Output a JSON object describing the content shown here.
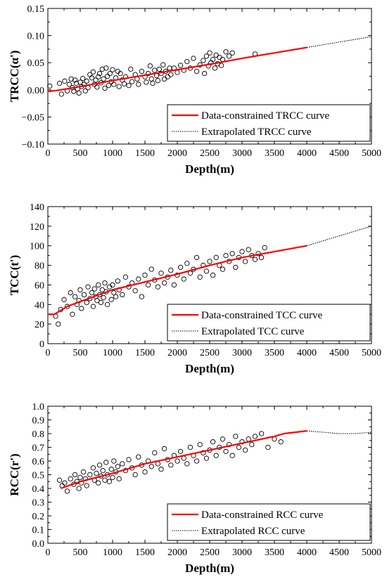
{
  "chart_data": [
    {
      "type": "scatter",
      "xlabel": "Depth(m)",
      "ylabel": "TRCC(α')",
      "xlim": [
        0,
        5000
      ],
      "ylim": [
        -0.1,
        0.15
      ],
      "x_ticks": [
        "0",
        "500",
        "1000",
        "1500",
        "2000",
        "2500",
        "3000",
        "3500",
        "4000",
        "4500",
        "5000"
      ],
      "y_ticks": [
        "−0.10",
        "−0.05",
        "0.00",
        "0.05",
        "0.10",
        "0.15"
      ],
      "grid": false,
      "legend_position": "bottom-right",
      "series": [
        {
          "name": "Data-constrained TRCC curve",
          "color": "#ff0000",
          "style": "solid",
          "x": [
            0,
            150,
            500,
            1000,
            1500,
            2000,
            2500,
            3000,
            3500,
            4000
          ],
          "y": [
            -0.003,
            -0.001,
            0.006,
            0.017,
            0.027,
            0.037,
            0.047,
            0.058,
            0.068,
            0.078
          ]
        },
        {
          "name": "Extrapolated TRCC curve",
          "color": "#000000",
          "style": "dotted",
          "x": [
            4000,
            4500,
            5000
          ],
          "y": [
            0.078,
            0.088,
            0.098
          ]
        },
        {
          "marker": "open-circle",
          "x": [
            30,
            180,
            210,
            260,
            300,
            330,
            360,
            380,
            400,
            420,
            440,
            460,
            480,
            500,
            520,
            540,
            560,
            580,
            600,
            620,
            650,
            680,
            700,
            720,
            740,
            760,
            780,
            800,
            820,
            840,
            860,
            880,
            900,
            920,
            940,
            960,
            980,
            1000,
            1020,
            1050,
            1080,
            1100,
            1120,
            1150,
            1180,
            1200,
            1250,
            1280,
            1300,
            1350,
            1380,
            1400,
            1450,
            1500,
            1520,
            1550,
            1580,
            1600,
            1620,
            1650,
            1680,
            1700,
            1720,
            1750,
            1780,
            1800,
            1820,
            1850,
            1880,
            1900,
            1950,
            2000,
            2050,
            2100,
            2150,
            2200,
            2250,
            2300,
            2350,
            2400,
            2420,
            2450,
            2480,
            2500,
            2520,
            2550,
            2580,
            2600,
            2620,
            2650,
            2680,
            2700,
            2750,
            2800,
            2850,
            3200
          ],
          "y": [
            0.007,
            0.012,
            -0.008,
            0.016,
            -0.002,
            0.01,
            0.02,
            0.004,
            -0.003,
            0.018,
            0.012,
            0.002,
            -0.006,
            0.014,
            0.006,
            0.021,
            0.01,
            -0.002,
            0.016,
            0.004,
            0.028,
            0.022,
            0.033,
            0.01,
            0.018,
            0.005,
            0.024,
            0.03,
            0.013,
            0.038,
            0.02,
            0.003,
            0.04,
            0.025,
            0.008,
            0.03,
            0.015,
            0.037,
            0.01,
            0.022,
            0.034,
            0.006,
            0.03,
            0.018,
            0.011,
            0.024,
            0.008,
            0.038,
            0.015,
            0.028,
            0.02,
            0.01,
            0.034,
            0.024,
            0.014,
            0.03,
            0.044,
            0.02,
            0.012,
            0.036,
            0.026,
            0.017,
            0.038,
            0.03,
            0.046,
            0.02,
            0.034,
            0.024,
            0.04,
            0.028,
            0.04,
            0.032,
            0.045,
            0.036,
            0.052,
            0.04,
            0.058,
            0.034,
            0.046,
            0.054,
            0.03,
            0.062,
            0.044,
            0.068,
            0.05,
            0.056,
            0.04,
            0.064,
            0.048,
            0.06,
            0.045,
            0.056,
            0.07,
            0.062,
            0.068,
            0.066
          ]
        }
      ]
    },
    {
      "type": "scatter",
      "xlabel": "Depth(m)",
      "ylabel": "TCC(t')",
      "xlim": [
        0,
        5000
      ],
      "ylim": [
        0,
        140
      ],
      "x_ticks": [
        "0",
        "500",
        "1000",
        "1500",
        "2000",
        "2500",
        "3000",
        "3500",
        "4000",
        "4500",
        "5000"
      ],
      "y_ticks": [
        "0",
        "20",
        "40",
        "60",
        "80",
        "100",
        "120",
        "140"
      ],
      "grid": false,
      "legend_position": "bottom-right",
      "series": [
        {
          "name": "Data-constrained TCC curve",
          "color": "#ff0000",
          "style": "solid",
          "x": [
            0,
            100,
            200,
            300,
            500,
            750,
            1000,
            1500,
            2000,
            2500,
            3000,
            3500,
            4000
          ],
          "y": [
            30,
            30,
            34,
            38,
            43,
            49,
            55,
            63,
            71,
            80,
            88,
            94,
            100
          ]
        },
        {
          "name": "Extrapolated TCC curve",
          "color": "#000000",
          "style": "dotted",
          "x": [
            4000,
            4500,
            5000
          ],
          "y": [
            100,
            110,
            120
          ]
        },
        {
          "marker": "open-circle",
          "x": [
            120,
            160,
            200,
            250,
            300,
            350,
            380,
            420,
            450,
            480,
            500,
            520,
            560,
            600,
            620,
            650,
            680,
            700,
            720,
            740,
            760,
            780,
            800,
            820,
            840,
            860,
            880,
            900,
            920,
            950,
            980,
            1000,
            1020,
            1050,
            1080,
            1100,
            1150,
            1200,
            1250,
            1300,
            1350,
            1400,
            1450,
            1500,
            1550,
            1600,
            1650,
            1700,
            1750,
            1800,
            1850,
            1900,
            1950,
            2000,
            2050,
            2100,
            2150,
            2200,
            2250,
            2300,
            2350,
            2400,
            2450,
            2500,
            2550,
            2600,
            2650,
            2700,
            2750,
            2800,
            2850,
            2900,
            2950,
            3000,
            3050,
            3100,
            3150,
            3200,
            3250,
            3300,
            3350
          ],
          "y": [
            28,
            20,
            35,
            45,
            38,
            52,
            30,
            48,
            40,
            44,
            55,
            36,
            50,
            42,
            58,
            46,
            52,
            38,
            56,
            48,
            44,
            60,
            50,
            42,
            55,
            47,
            62,
            53,
            40,
            58,
            45,
            60,
            52,
            48,
            64,
            55,
            50,
            68,
            58,
            62,
            54,
            66,
            48,
            70,
            60,
            76,
            65,
            58,
            72,
            62,
            68,
            75,
            60,
            70,
            78,
            66,
            82,
            72,
            76,
            88,
            68,
            80,
            74,
            84,
            70,
            88,
            80,
            76,
            90,
            84,
            92,
            78,
            88,
            94,
            84,
            96,
            90,
            86,
            92,
            88,
            98
          ]
        }
      ]
    },
    {
      "type": "scatter",
      "xlabel": "Depth(m)",
      "ylabel": "RCC(r')",
      "xlim": [
        0,
        5000
      ],
      "ylim": [
        0.0,
        1.0
      ],
      "x_ticks": [
        "0",
        "500",
        "1000",
        "1500",
        "2000",
        "2500",
        "3000",
        "3500",
        "4000",
        "4500",
        "5000"
      ],
      "y_ticks": [
        "0.0",
        "0.1",
        "0.2",
        "0.3",
        "0.4",
        "0.5",
        "0.6",
        "0.7",
        "0.8",
        "0.9",
        "1.0"
      ],
      "grid": false,
      "legend_position": "bottom-right",
      "series": [
        {
          "name": "Data-constrained RCC curve",
          "color": "#ff0000",
          "style": "solid",
          "x": [
            200,
            500,
            1000,
            1500,
            2000,
            2500,
            3000,
            3500,
            3650,
            4000
          ],
          "y": [
            0.4,
            0.45,
            0.51,
            0.58,
            0.63,
            0.68,
            0.73,
            0.78,
            0.8,
            0.82
          ]
        },
        {
          "name": "Extrapolated RCC curve",
          "color": "#000000",
          "style": "dotted",
          "x": [
            4000,
            4250,
            4500,
            4750,
            5000
          ],
          "y": [
            0.82,
            0.81,
            0.8,
            0.8,
            0.81
          ]
        },
        {
          "marker": "open-circle",
          "x": [
            180,
            220,
            260,
            300,
            350,
            400,
            420,
            450,
            480,
            500,
            520,
            550,
            580,
            600,
            650,
            700,
            720,
            750,
            780,
            800,
            820,
            850,
            880,
            900,
            920,
            950,
            980,
            1000,
            1020,
            1050,
            1080,
            1100,
            1150,
            1200,
            1250,
            1300,
            1350,
            1400,
            1450,
            1500,
            1550,
            1600,
            1650,
            1700,
            1750,
            1800,
            1850,
            1900,
            1950,
            2000,
            2050,
            2100,
            2150,
            2200,
            2250,
            2300,
            2350,
            2400,
            2450,
            2500,
            2550,
            2600,
            2650,
            2700,
            2750,
            2800,
            2850,
            2900,
            2950,
            3000,
            3050,
            3100,
            3150,
            3200,
            3300,
            3400,
            3500,
            3600
          ],
          "y": [
            0.46,
            0.42,
            0.44,
            0.38,
            0.47,
            0.43,
            0.5,
            0.45,
            0.4,
            0.48,
            0.44,
            0.52,
            0.47,
            0.42,
            0.5,
            0.55,
            0.46,
            0.51,
            0.44,
            0.57,
            0.49,
            0.53,
            0.46,
            0.59,
            0.5,
            0.45,
            0.54,
            0.48,
            0.6,
            0.52,
            0.56,
            0.47,
            0.58,
            0.53,
            0.61,
            0.55,
            0.5,
            0.63,
            0.57,
            0.52,
            0.6,
            0.56,
            0.66,
            0.58,
            0.54,
            0.69,
            0.61,
            0.57,
            0.64,
            0.6,
            0.67,
            0.62,
            0.58,
            0.7,
            0.64,
            0.6,
            0.72,
            0.66,
            0.62,
            0.68,
            0.74,
            0.64,
            0.7,
            0.76,
            0.67,
            0.72,
            0.64,
            0.78,
            0.7,
            0.74,
            0.68,
            0.76,
            0.72,
            0.78,
            0.8,
            0.7,
            0.76,
            0.74
          ]
        }
      ]
    }
  ]
}
